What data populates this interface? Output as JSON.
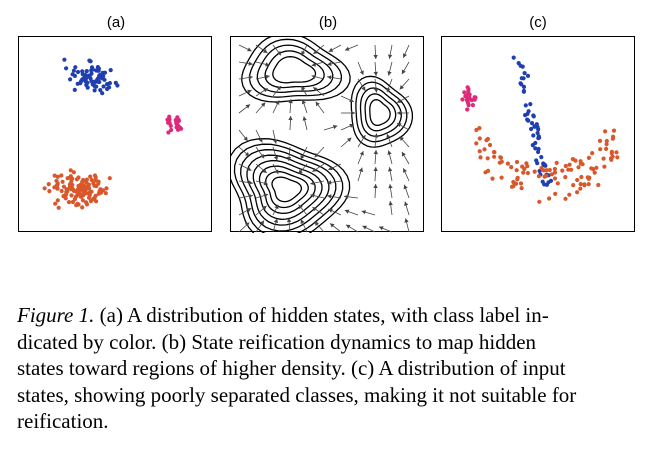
{
  "panels": [
    {
      "label": "(a)",
      "kind": "scatter"
    },
    {
      "label": "(b)",
      "kind": "flow-field"
    },
    {
      "label": "(c)",
      "kind": "scatter"
    }
  ],
  "colors": {
    "blue": "#1f3fb0",
    "pink": "#e0297a",
    "orange": "#d9572b",
    "ink": "#000000"
  },
  "caption": {
    "figure_label": "Figure 1.",
    "line1": "(a) A distribution of hidden states, with class label in-",
    "line2": "dicated by color.  (b) State reification dynamics to map hidden",
    "line3": "states toward regions of higher density. (c) A distribution of input",
    "line4": "states, showing poorly separated classes, making it not suitable for",
    "line5": "reification."
  }
}
